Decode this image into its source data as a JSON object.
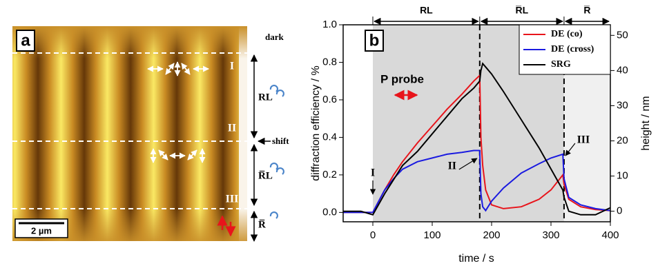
{
  "panel_a": {
    "label": "a",
    "side_label": "dark",
    "stages": [
      "I",
      "II",
      "III"
    ],
    "segments": [
      "RL",
      "R̅L",
      "R̅"
    ],
    "shift": "shift",
    "scale_bar": "2 µm"
  },
  "chart_data": {
    "type": "line",
    "panel_label": "b",
    "x_label": "time / s",
    "y_label": "diffraction efficiency / %",
    "y2_label": "height / nm",
    "x": [
      -50,
      -20,
      0,
      10,
      20,
      35,
      50,
      75,
      100,
      125,
      150,
      170,
      180,
      182,
      185,
      190,
      200,
      220,
      250,
      280,
      300,
      320,
      322,
      330,
      350,
      375,
      400
    ],
    "series": [
      {
        "name": "DE (co)",
        "color": "#e8141b",
        "values": [
          0,
          0,
          0,
          0.06,
          0.12,
          0.2,
          0.27,
          0.37,
          0.46,
          0.55,
          0.63,
          0.7,
          0.73,
          0.4,
          0.25,
          0.12,
          0.04,
          0.02,
          0.03,
          0.07,
          0.12,
          0.2,
          0.15,
          0.07,
          0.03,
          0.015,
          0.01
        ]
      },
      {
        "name": "DE (cross)",
        "color": "#1a1ae0",
        "values": [
          0,
          0,
          0,
          0.06,
          0.12,
          0.18,
          0.23,
          0.27,
          0.29,
          0.31,
          0.32,
          0.33,
          0.33,
          0.1,
          0.03,
          0.01,
          0.06,
          0.13,
          0.21,
          0.26,
          0.29,
          0.31,
          0.18,
          0.08,
          0.04,
          0.02,
          0.01
        ]
      },
      {
        "name": "SRG",
        "color": "#000000",
        "axis": "y2",
        "values": [
          0,
          0,
          -1,
          2,
          5,
          9,
          13,
          17,
          22,
          27,
          32,
          35,
          37,
          40,
          42,
          41,
          39,
          34,
          26,
          18,
          12,
          6,
          4,
          0,
          -1,
          -1,
          1
        ]
      }
    ],
    "xlim": [
      -50,
      400
    ],
    "xticks": [
      0,
      100,
      200,
      300,
      400
    ],
    "ylim": [
      -0.05,
      1.0
    ],
    "yticks": [
      {
        "value": 0,
        "label": "0.0"
      },
      0.2,
      0.4,
      0.6,
      0.8,
      {
        "value": 1,
        "label": "1.0"
      }
    ],
    "y2lim": [
      -3,
      53
    ],
    "y2ticks": [
      0,
      10,
      20,
      30,
      40,
      50
    ],
    "legend": "top-right",
    "phases": [
      {
        "label": "RL",
        "start": 0,
        "end": 180
      },
      {
        "label": "R̅L",
        "start": 180,
        "end": 322
      },
      {
        "label": "R̅",
        "start": 322,
        "end": 400
      }
    ],
    "annotations": [
      {
        "text": "I",
        "x": 0
      },
      {
        "text": "II",
        "x": 180
      },
      {
        "text": "III",
        "x": 322
      }
    ],
    "probe_label": "P probe"
  }
}
